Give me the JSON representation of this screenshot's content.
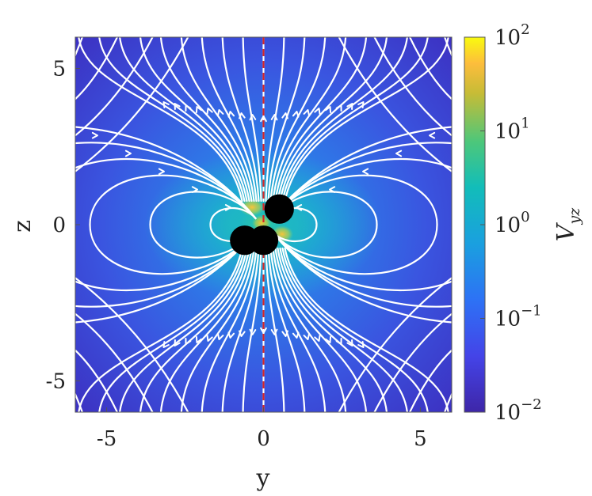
{
  "chart_data": {
    "type": "heatmap",
    "title": "",
    "xlabel": "y",
    "ylabel": "z",
    "xlim": [
      -6,
      6
    ],
    "ylim": [
      -6,
      6
    ],
    "xticks": [
      -5,
      0,
      5
    ],
    "yticks": [
      -5,
      0,
      5
    ],
    "xtick_labels": [
      "-5",
      "0",
      "5"
    ],
    "ytick_labels": [
      "-5",
      "0",
      "5"
    ],
    "grid": false,
    "colorbar": {
      "label_main": "V",
      "label_sub": "yz",
      "scale": "log",
      "range": [
        0.01,
        100
      ],
      "colormap": "parula",
      "ticks": [
        {
          "value": 100,
          "base": "10",
          "exp": "2"
        },
        {
          "value": 10,
          "base": "10",
          "exp": "1"
        },
        {
          "value": 1,
          "base": "10",
          "exp": "0"
        },
        {
          "value": 0.1,
          "base": "10",
          "exp": "−1"
        },
        {
          "value": 0.01,
          "base": "10",
          "exp": "−2"
        }
      ]
    },
    "spheres": [
      {
        "y": 0.5,
        "z": 0.5
      },
      {
        "y": 0.0,
        "z": -0.5
      },
      {
        "y": -0.6,
        "z": -0.5
      }
    ],
    "reference_line": {
      "y": 0,
      "color": "#d62828",
      "style": "dashed"
    },
    "overlay": "streamlines",
    "colors": {
      "streamline": "#ffffff",
      "sphere": "#000000"
    }
  }
}
